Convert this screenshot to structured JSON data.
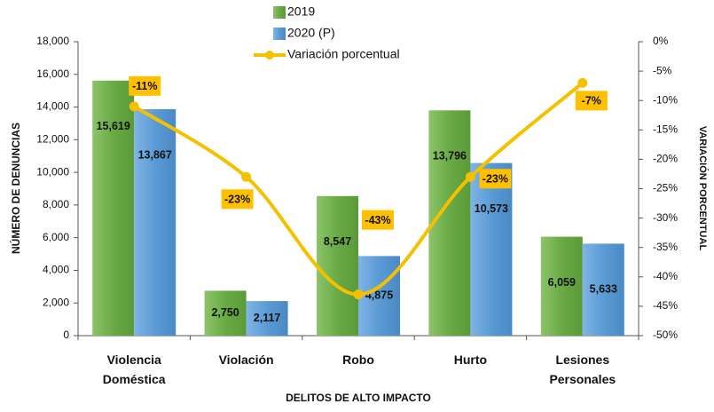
{
  "chart_data": {
    "type": "bar",
    "x_label": "DELITOS DE ALTO IMPACTO",
    "y_label": "NÚMERO DE  DENUNCIAS",
    "y2_label": "VARIACIÓN PORCENTUAL",
    "categories": [
      "Violencia Doméstica",
      "Violación",
      "Robo",
      "Hurto",
      "Lesiones Personales"
    ],
    "series": [
      {
        "name": "2019",
        "color": "#6aaa45",
        "values": [
          15619,
          2750,
          8547,
          13796,
          6059
        ],
        "value_labels": [
          "15,619",
          "2,750",
          "8,547",
          "13,796",
          "6,059"
        ]
      },
      {
        "name": "2020 (P)",
        "color": "#5b9bd5",
        "values": [
          13867,
          2117,
          4875,
          10573,
          5633
        ],
        "value_labels": [
          "13,867",
          "2,117",
          "4,875",
          "10,573",
          "5,633"
        ]
      },
      {
        "name": "Variación porcentual",
        "type": "line",
        "axis": "y2",
        "color": "#f5c000",
        "values": [
          -11,
          -23,
          -43,
          -23,
          -7
        ],
        "value_labels": [
          "-11%",
          "-23%",
          "-43%",
          "-23%",
          "-7%"
        ]
      }
    ],
    "ylim": [
      0,
      18000
    ],
    "yticks": [
      0,
      {
        "value": 2000,
        "label": "2,000"
      },
      {
        "value": 4000,
        "label": "4,000"
      },
      {
        "value": 6000,
        "label": "6,000"
      },
      {
        "value": 8000,
        "label": "8,000"
      },
      {
        "value": 10000,
        "label": "10,000"
      },
      {
        "value": 12000,
        "label": "12,000"
      },
      {
        "value": 14000,
        "label": "14,000"
      },
      {
        "value": 16000,
        "label": "16,000"
      },
      {
        "value": 18000,
        "label": "18,000"
      }
    ],
    "y2lim": [
      -50,
      0
    ],
    "y2ticks": [
      {
        "value": 0,
        "label": "0%"
      },
      {
        "value": -5,
        "label": "-5%"
      },
      {
        "value": -10,
        "label": "-10%"
      },
      {
        "value": -15,
        "label": "-15%"
      },
      {
        "value": -20,
        "label": "-20%"
      },
      {
        "value": -25,
        "label": "-25%"
      },
      {
        "value": -30,
        "label": "-30%"
      },
      {
        "value": -35,
        "label": "-35%"
      },
      {
        "value": -40,
        "label": "-40%"
      },
      {
        "value": -45,
        "label": "-45%"
      },
      {
        "value": -50,
        "label": "-50%"
      }
    ]
  }
}
